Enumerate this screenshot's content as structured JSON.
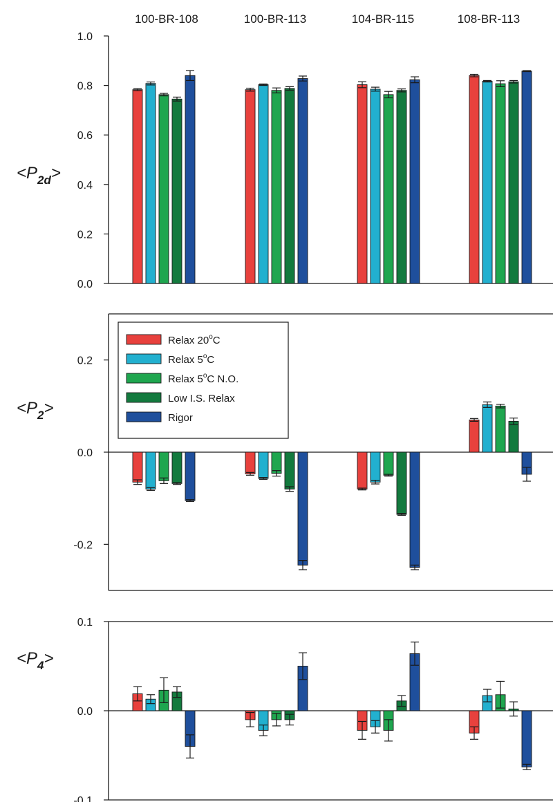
{
  "category_labels": [
    "100-BR-108",
    "100-BR-113",
    "104-BR-115",
    "108-BR-113"
  ],
  "legend": {
    "items": [
      {
        "label": "Relax 20",
        "sup": "o",
        "suffix": "C",
        "color": "#e8413d"
      },
      {
        "label": "Relax 5",
        "sup": "o",
        "suffix": "C",
        "color": "#22b0cf"
      },
      {
        "label": "Relax 5",
        "sup": "o",
        "suffix": "C N.O.",
        "color": "#1fa64f"
      },
      {
        "label": "Low I.S. Relax",
        "sup": "",
        "suffix": "",
        "color": "#137a3e"
      },
      {
        "label": "Rigor",
        "sup": "",
        "suffix": "",
        "color": "#1f4f9c"
      }
    ]
  },
  "chart_data": [
    {
      "type": "bar",
      "ylabel": {
        "base": "<P",
        "sub": "2d",
        "tail": ">"
      },
      "ylim": [
        0.0,
        1.0
      ],
      "yticks": [
        "0.0",
        "0.2",
        "0.4",
        "0.6",
        "0.8",
        "1.0"
      ],
      "categories": [
        "100-BR-108",
        "100-BR-113",
        "104-BR-115",
        "108-BR-113"
      ],
      "series": [
        {
          "name": "Relax 20oC",
          "color": "#e8413d",
          "values": [
            0.783,
            0.783,
            0.803,
            0.84
          ],
          "errors": [
            0.004,
            0.006,
            0.012,
            0.005
          ]
        },
        {
          "name": "Relax 5oC",
          "color": "#22b0cf",
          "values": [
            0.808,
            0.803,
            0.785,
            0.817
          ],
          "errors": [
            0.006,
            0.003,
            0.008,
            0.003
          ]
        },
        {
          "name": "Relax 5oC N.O.",
          "color": "#1fa64f",
          "values": [
            0.763,
            0.78,
            0.763,
            0.807
          ],
          "errors": [
            0.005,
            0.01,
            0.013,
            0.012
          ]
        },
        {
          "name": "Low I.S. Relax",
          "color": "#137a3e",
          "values": [
            0.745,
            0.788,
            0.78,
            0.815
          ],
          "errors": [
            0.008,
            0.007,
            0.006,
            0.005
          ]
        },
        {
          "name": "Rigor",
          "color": "#1f4f9c",
          "values": [
            0.84,
            0.828,
            0.823,
            0.858
          ],
          "errors": [
            0.02,
            0.01,
            0.012,
            0.002
          ]
        }
      ]
    },
    {
      "type": "bar",
      "ylabel": {
        "base": "<P",
        "sub": "2",
        "tail": ">"
      },
      "ylim": [
        -0.3,
        0.3
      ],
      "yticks": [
        "-0.2",
        "0.0",
        "0.2"
      ],
      "categories": [
        "100-BR-108",
        "100-BR-113",
        "104-BR-115",
        "108-BR-113"
      ],
      "series": [
        {
          "name": "Relax 20oC",
          "color": "#e8413d",
          "values": [
            -0.065,
            -0.047,
            -0.08,
            0.07
          ],
          "errors": [
            0.005,
            0.003,
            0.002,
            0.003
          ]
        },
        {
          "name": "Relax 5oC",
          "color": "#22b0cf",
          "values": [
            -0.08,
            -0.057,
            -0.065,
            0.103
          ],
          "errors": [
            0.003,
            0.002,
            0.004,
            0.006
          ]
        },
        {
          "name": "Relax 5oC N.O.",
          "color": "#1fa64f",
          "values": [
            -0.062,
            -0.046,
            -0.05,
            0.1
          ],
          "errors": [
            0.006,
            0.006,
            0.002,
            0.004
          ]
        },
        {
          "name": "Low I.S. Relax",
          "color": "#137a3e",
          "values": [
            -0.068,
            -0.08,
            -0.135,
            0.067
          ],
          "errors": [
            0.002,
            0.005,
            0.002,
            0.007
          ]
        },
        {
          "name": "Rigor",
          "color": "#1f4f9c",
          "values": [
            -0.105,
            -0.245,
            -0.25,
            -0.048
          ],
          "errors": [
            0.002,
            0.01,
            0.005,
            0.015
          ]
        }
      ]
    },
    {
      "type": "bar",
      "ylabel": {
        "base": "<P",
        "sub": "4",
        "tail": ">"
      },
      "ylim": [
        -0.1,
        0.1
      ],
      "yticks": [
        "-0.1",
        "0.0",
        "0.1"
      ],
      "categories": [
        "100-BR-108",
        "100-BR-113",
        "104-BR-115",
        "108-BR-113"
      ],
      "series": [
        {
          "name": "Relax 20oC",
          "color": "#e8413d",
          "values": [
            0.019,
            -0.01,
            -0.022,
            -0.025
          ],
          "errors": [
            0.008,
            0.008,
            0.01,
            0.007
          ]
        },
        {
          "name": "Relax 5oC",
          "color": "#22b0cf",
          "values": [
            0.013,
            -0.022,
            -0.018,
            0.017
          ],
          "errors": [
            0.005,
            0.006,
            0.007,
            0.007
          ]
        },
        {
          "name": "Relax 5oC N.O.",
          "color": "#1fa64f",
          "values": [
            0.023,
            -0.01,
            -0.022,
            0.018
          ],
          "errors": [
            0.014,
            0.007,
            0.012,
            0.015
          ]
        },
        {
          "name": "Low I.S. Relax",
          "color": "#137a3e",
          "values": [
            0.021,
            -0.01,
            0.011,
            0.002
          ],
          "errors": [
            0.006,
            0.006,
            0.006,
            0.008
          ]
        },
        {
          "name": "Rigor",
          "color": "#1f4f9c",
          "values": [
            -0.04,
            0.05,
            0.064,
            -0.063
          ],
          "errors": [
            0.013,
            0.015,
            0.013,
            0.003
          ]
        }
      ]
    }
  ]
}
